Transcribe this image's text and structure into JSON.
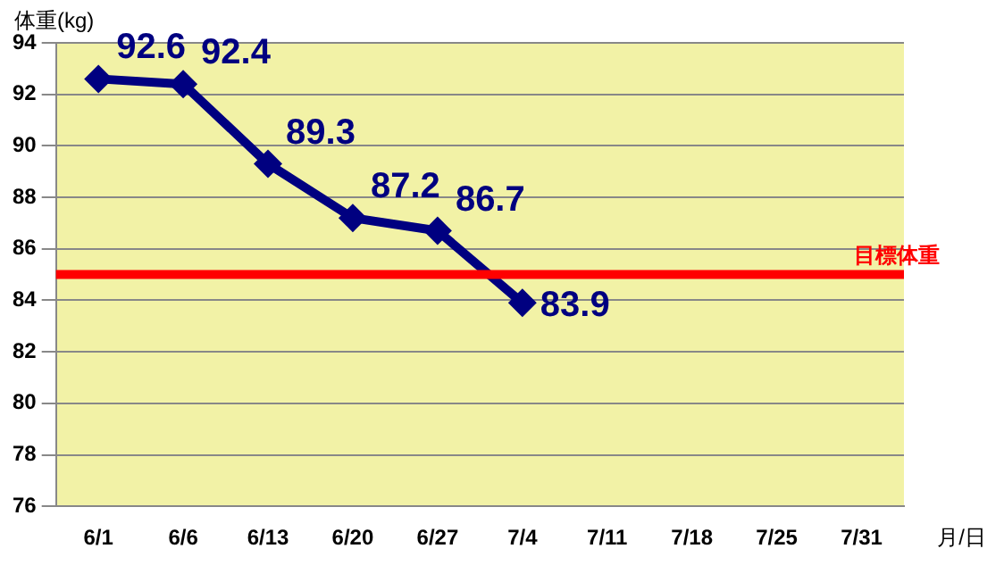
{
  "chart_data": {
    "type": "line",
    "ylabel": "体重(kg)",
    "xlabel": "月/日",
    "categories": [
      "6/1",
      "6/6",
      "6/13",
      "6/20",
      "6/27",
      "7/4",
      "7/11",
      "7/18",
      "7/25",
      "7/31"
    ],
    "series": [
      {
        "color": "#000080",
        "values": [
          92.6,
          92.4,
          89.3,
          87.2,
          86.7,
          83.9,
          null,
          null,
          null,
          null
        ]
      }
    ],
    "ylim": [
      76,
      94
    ],
    "yticks": [
      76,
      78,
      80,
      82,
      84,
      86,
      88,
      90,
      92,
      94
    ],
    "grid": "y",
    "marker": "diamond",
    "line_style": "solid",
    "data_labels": true,
    "ref_lines": [
      {
        "axis": "y",
        "value": 85,
        "label": "目標体重",
        "color": "#ff0000"
      }
    ]
  }
}
